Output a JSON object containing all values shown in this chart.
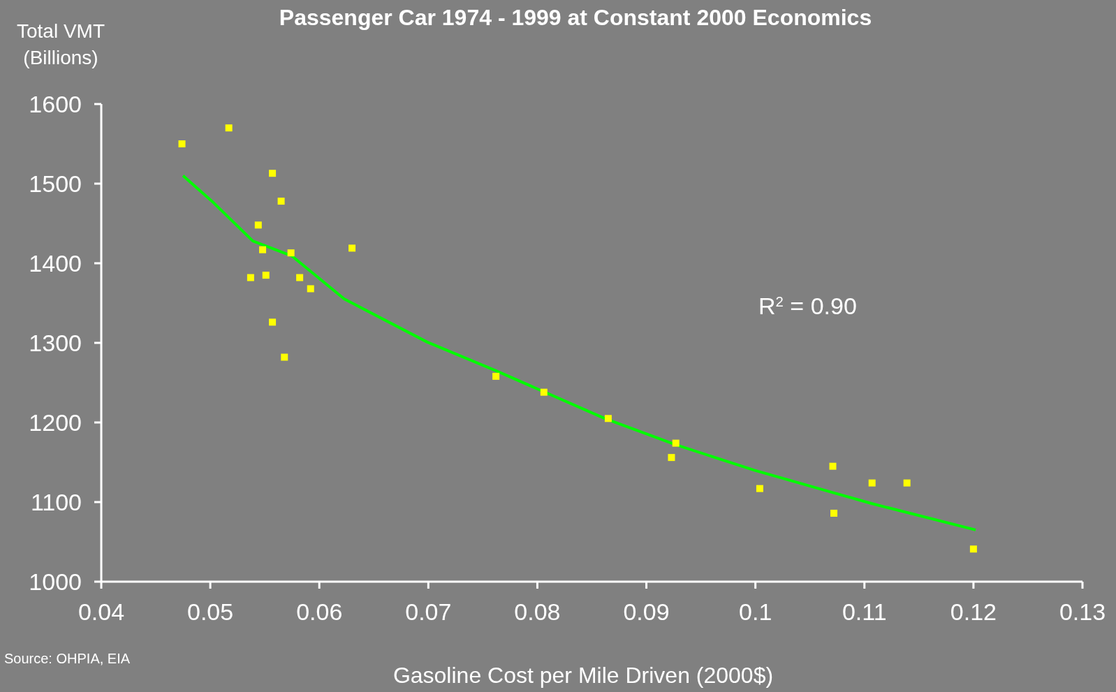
{
  "chart_data": {
    "type": "scatter",
    "title": "Passenger Car 1974 - 1999 at Constant 2000 Economics",
    "xlabel": "Gasoline Cost per Mile Driven (2000$)",
    "ylabel": "Total VMT\n(Billions)",
    "annotations": [
      "R$^{2}$ = 0.90",
      "Source: OHPIA, EIA"
    ],
    "xlim": [
      0.04,
      0.13
    ],
    "xticks": [
      0.04,
      0.05,
      0.06,
      0.07,
      0.08,
      0.09,
      0.1,
      0.11,
      0.12,
      0.13
    ],
    "ylim": [
      1000,
      1600
    ],
    "yticks": [
      1000,
      1100,
      1200,
      1300,
      1400,
      1500,
      1600
    ],
    "grid": false,
    "series": [
      {
        "marker": "square",
        "color": "#ffff00",
        "x": [
          0.0474,
          0.0517,
          0.0557,
          0.0565,
          0.0544,
          0.0548,
          0.0574,
          0.063,
          0.0537,
          0.0551,
          0.0582,
          0.0592,
          0.0557,
          0.0568,
          0.0762,
          0.0806,
          0.0865,
          0.0927,
          0.0923,
          0.1004,
          0.1071,
          0.1072,
          0.1107,
          0.1139,
          0.12
        ],
        "values": [
          1550,
          1570,
          1513,
          1478,
          1448,
          1417,
          1413,
          1419,
          1382,
          1385,
          1382,
          1368,
          1326,
          1282,
          1258,
          1238,
          1205,
          1174,
          1156,
          1117,
          1145,
          1086,
          1124,
          1124,
          1041
        ]
      },
      {
        "type": "line",
        "color": "#00ff00",
        "line_style": "solid",
        "x": [
          0.0475,
          0.0503,
          0.0539,
          0.0575,
          0.0623,
          0.0699,
          0.0762,
          0.0862,
          0.0927,
          0.0999,
          0.1071,
          0.1107,
          0.1202
        ],
        "values": [
          1510,
          1476,
          1428,
          1409,
          1355,
          1301,
          1265,
          1205,
          1172,
          1140,
          1112,
          1098,
          1065
        ]
      }
    ]
  }
}
